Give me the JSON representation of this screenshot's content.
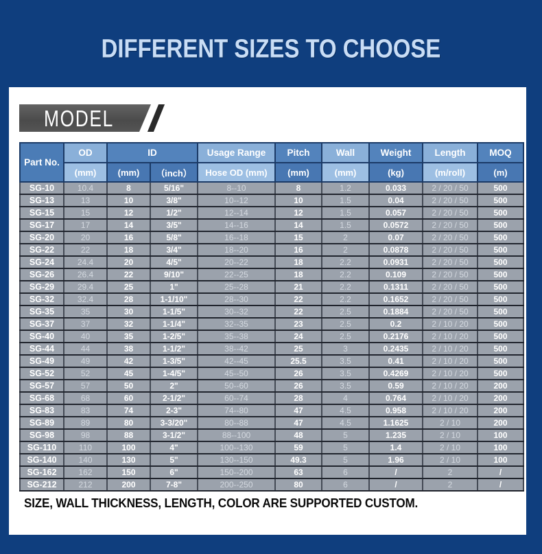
{
  "page": {
    "title": "DIFFERENT SIZES TO CHOOSE",
    "model_label": "MODEL",
    "footer_note": "SIZE, WALL THICKNESS, LENGTH, COLOR ARE SUPPORTED CUSTOM."
  },
  "colors": {
    "background_navy": "#0f3e7e",
    "title_text": "#c9ddf5",
    "header_dark_blue": "#4e7eb8",
    "header_light_blue": "#8fb4db",
    "row_gray": "#9ba2ac",
    "banner_gray": "#525252"
  },
  "table": {
    "header": {
      "part_no": "Part No.",
      "od": {
        "label": "OD",
        "sub": "(mm)"
      },
      "id": {
        "label": "ID",
        "sub_mm": "(mm)",
        "sub_inch": "（inch）"
      },
      "usage": {
        "label": "Usage Range",
        "sub": "Hose OD (mm)"
      },
      "pitch": {
        "label": "Pitch",
        "sub": "(mm)"
      },
      "wall": {
        "label": "Wall",
        "sub": "(mm)"
      },
      "weight": {
        "label": "Weight",
        "sub": "(kg)"
      },
      "length": {
        "label": "Length",
        "sub": "(m/roll)"
      },
      "moq": {
        "label": "MOQ",
        "sub": "(m)"
      }
    },
    "col_keys": [
      "part-no",
      "od-mm",
      "id-mm",
      "id-inch",
      "usage-range",
      "pitch-mm",
      "wall-mm",
      "weight-kg",
      "length-m-roll",
      "moq-m"
    ],
    "rows": [
      [
        "SG-10",
        "10.4",
        "8",
        "5/16\"",
        "8--10",
        "8",
        "1.2",
        "0.033",
        "2 / 20 / 50",
        "500"
      ],
      [
        "SG-13",
        "13",
        "10",
        "3/8\"",
        "10--12",
        "10",
        "1.5",
        "0.04",
        "2 / 20 / 50",
        "500"
      ],
      [
        "SG-15",
        "15",
        "12",
        "1/2\"",
        "12--14",
        "12",
        "1.5",
        "0.057",
        "2 / 20 / 50",
        "500"
      ],
      [
        "SG-17",
        "17",
        "14",
        "3/5\"",
        "14--16",
        "14",
        "1.5",
        "0.0572",
        "2 / 20 / 50",
        "500"
      ],
      [
        "SG-20",
        "20",
        "16",
        "5/8\"",
        "16--18",
        "15",
        "2",
        "0.07",
        "2 / 20 / 50",
        "500"
      ],
      [
        "SG-22",
        "22",
        "18",
        "3/4\"",
        "18--20",
        "16",
        "2",
        "0.0878",
        "2 / 20 / 50",
        "500"
      ],
      [
        "SG-24",
        "24.4",
        "20",
        "4/5\"",
        "20--22",
        "18",
        "2.2",
        "0.0931",
        "2 / 20 / 50",
        "500"
      ],
      [
        "SG-26",
        "26.4",
        "22",
        "9/10\"",
        "22--25",
        "18",
        "2.2",
        "0.109",
        "2 / 20 / 50",
        "500"
      ],
      [
        "SG-29",
        "29.4",
        "25",
        "1\"",
        "25--28",
        "21",
        "2.2",
        "0.1311",
        "2 / 20 / 50",
        "500"
      ],
      [
        "SG-32",
        "32.4",
        "28",
        "1-1/10\"",
        "28--30",
        "22",
        "2.2",
        "0.1652",
        "2 / 20 / 50",
        "500"
      ],
      [
        "SG-35",
        "35",
        "30",
        "1-1/5\"",
        "30--32",
        "22",
        "2.5",
        "0.1884",
        "2 / 20 / 50",
        "500"
      ],
      [
        "SG-37",
        "37",
        "32",
        "1-1/4\"",
        "32--35",
        "23",
        "2.5",
        "0.2",
        "2 / 10 / 20",
        "500"
      ],
      [
        "SG-40",
        "40",
        "35",
        "1-2/5\"",
        "35--38",
        "24",
        "2.5",
        "0.2176",
        "2 / 10 / 20",
        "500"
      ],
      [
        "SG-44",
        "44",
        "38",
        "1-1/2\"",
        "38--42",
        "25",
        "3",
        "0.2435",
        "2 / 10 / 20",
        "500"
      ],
      [
        "SG-49",
        "49",
        "42",
        "1-3/5\"",
        "42--45",
        "25.5",
        "3.5",
        "0.41",
        "2 / 10 / 20",
        "500"
      ],
      [
        "SG-52",
        "52",
        "45",
        "1-4/5\"",
        "45--50",
        "26",
        "3.5",
        "0.4269",
        "2 / 10 / 20",
        "500"
      ],
      [
        "SG-57",
        "57",
        "50",
        "2\"",
        "50--60",
        "26",
        "3.5",
        "0.59",
        "2 / 10 / 20",
        "200"
      ],
      [
        "SG-68",
        "68",
        "60",
        "2-1/2\"",
        "60--74",
        "28",
        "4",
        "0.764",
        "2 / 10 / 20",
        "200"
      ],
      [
        "SG-83",
        "83",
        "74",
        "2-3\"",
        "74--80",
        "47",
        "4.5",
        "0.958",
        "2 / 10 / 20",
        "200"
      ],
      [
        "SG-89",
        "89",
        "80",
        "3-3/20\"",
        "80--88",
        "47",
        "4.5",
        "1.1625",
        "2 / 10",
        "200"
      ],
      [
        "SG-98",
        "98",
        "88",
        "3-1/2\"",
        "88--100",
        "48",
        "5",
        "1.235",
        "2 / 10",
        "100"
      ],
      [
        "SG-110",
        "110",
        "100",
        "4\"",
        "100--130",
        "59",
        "5",
        "1.4",
        "2 / 10",
        "100"
      ],
      [
        "SG-140",
        "140",
        "130",
        "5\"",
        "130--150",
        "49.3",
        "5",
        "1.96",
        "2 / 10",
        "100"
      ],
      [
        "SG-162",
        "162",
        "150",
        "6\"",
        "150--200",
        "63",
        "6",
        "/",
        "2",
        "/"
      ],
      [
        "SG-212",
        "212",
        "200",
        "7-8\"",
        "200--250",
        "80",
        "6",
        "/",
        "2",
        "/"
      ]
    ]
  }
}
